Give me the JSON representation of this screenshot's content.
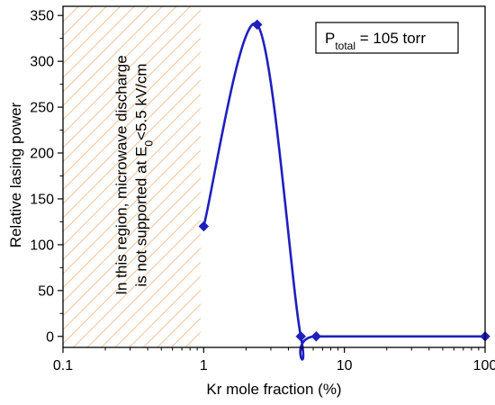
{
  "chart_data": {
    "type": "line",
    "title": "",
    "xlabel": "Kr mole fraction (%)",
    "ylabel": "Relative lasing power",
    "x_scale": "log",
    "xlim": [
      0.1,
      100
    ],
    "ylim": [
      -12,
      360
    ],
    "x_ticks": [
      {
        "value": 0.1,
        "label": "0.1"
      },
      {
        "value": 1,
        "label": "1"
      },
      {
        "value": 10,
        "label": "10"
      },
      {
        "value": 100,
        "label": "100"
      }
    ],
    "y_ticks": [
      {
        "value": 0,
        "label": "0"
      },
      {
        "value": 50,
        "label": "50"
      },
      {
        "value": 100,
        "label": "100"
      },
      {
        "value": 150,
        "label": "150"
      },
      {
        "value": 200,
        "label": "200"
      },
      {
        "value": 250,
        "label": "250"
      },
      {
        "value": 300,
        "label": "300"
      },
      {
        "value": 350,
        "label": "350"
      }
    ],
    "series": [
      {
        "x": [
          1.0,
          2.4,
          4.9,
          6.3,
          100
        ],
        "y": [
          120,
          340,
          0,
          0,
          0
        ],
        "color": "#1f1fbf",
        "marker": "diamond",
        "smooth": true
      }
    ],
    "shaded_region": {
      "x_from": 0.1,
      "x_to": 0.95,
      "pattern": "diagonal-hatch",
      "color": "#f0c8a0",
      "text_lines": [
        "In this region, microwave discharge",
        "is not supported at E",
        "<5.5 kV/cm"
      ],
      "text_subscript": "0"
    },
    "legend_box": {
      "position": "top-right",
      "prefix": "P",
      "subscript": "total",
      "suffix": " = 105 torr"
    },
    "grid": false
  }
}
